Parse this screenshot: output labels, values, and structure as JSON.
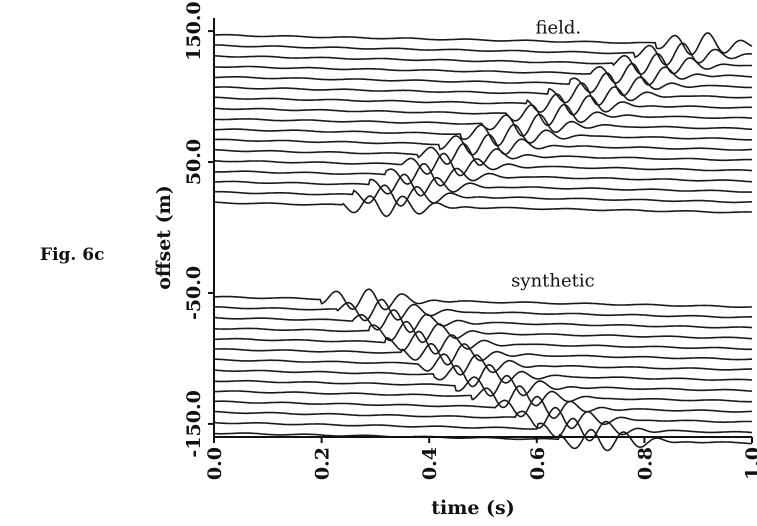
{
  "figure_label": "Fig. 6c",
  "chart_data": {
    "type": "line",
    "xlabel": "time (s)",
    "ylabel": "offset (m)",
    "xlim": [
      0.0,
      1.0
    ],
    "ylim": [
      -160,
      160
    ],
    "x_ticks": [
      {
        "value": 0.0,
        "label": "0.0"
      },
      {
        "value": 0.2,
        "label": "0.2"
      },
      {
        "value": 0.4,
        "label": "0.4"
      },
      {
        "value": 0.6,
        "label": "0.6"
      },
      {
        "value": 0.8,
        "label": "0.8"
      },
      {
        "value": 1.0,
        "label": "1.0"
      }
    ],
    "y_ticks": [
      {
        "value": 150,
        "label": "150.0"
      },
      {
        "value": 50,
        "label": "50.0"
      },
      {
        "value": -50,
        "label": "-50.0"
      },
      {
        "value": -150,
        "label": "-150.0"
      }
    ],
    "annotations": [
      {
        "text": "field.",
        "x": 0.64,
        "y": 148
      },
      {
        "text": "synthetic",
        "x": 0.63,
        "y": -45
      }
    ],
    "grid": false,
    "legend": "none",
    "panels": [
      {
        "name": "field",
        "offsets": [
          147,
          139,
          131,
          123,
          115,
          107,
          99,
          91,
          83,
          75,
          67,
          59,
          51,
          43,
          35,
          27,
          19
        ],
        "first_arrival_times": [
          0.84,
          0.8,
          0.76,
          0.72,
          0.68,
          0.64,
          0.6,
          0.56,
          0.52,
          0.48,
          0.44,
          0.4,
          0.37,
          0.34,
          0.31,
          0.28,
          0.26
        ]
      },
      {
        "name": "synthetic",
        "offsets": [
          -53,
          -61,
          -69,
          -77,
          -85,
          -93,
          -101,
          -109,
          -117,
          -125,
          -133,
          -141,
          -149,
          -157
        ],
        "first_arrival_times": [
          0.22,
          0.25,
          0.28,
          0.31,
          0.34,
          0.37,
          0.4,
          0.43,
          0.47,
          0.5,
          0.54,
          0.58,
          0.62,
          0.66
        ]
      }
    ]
  }
}
